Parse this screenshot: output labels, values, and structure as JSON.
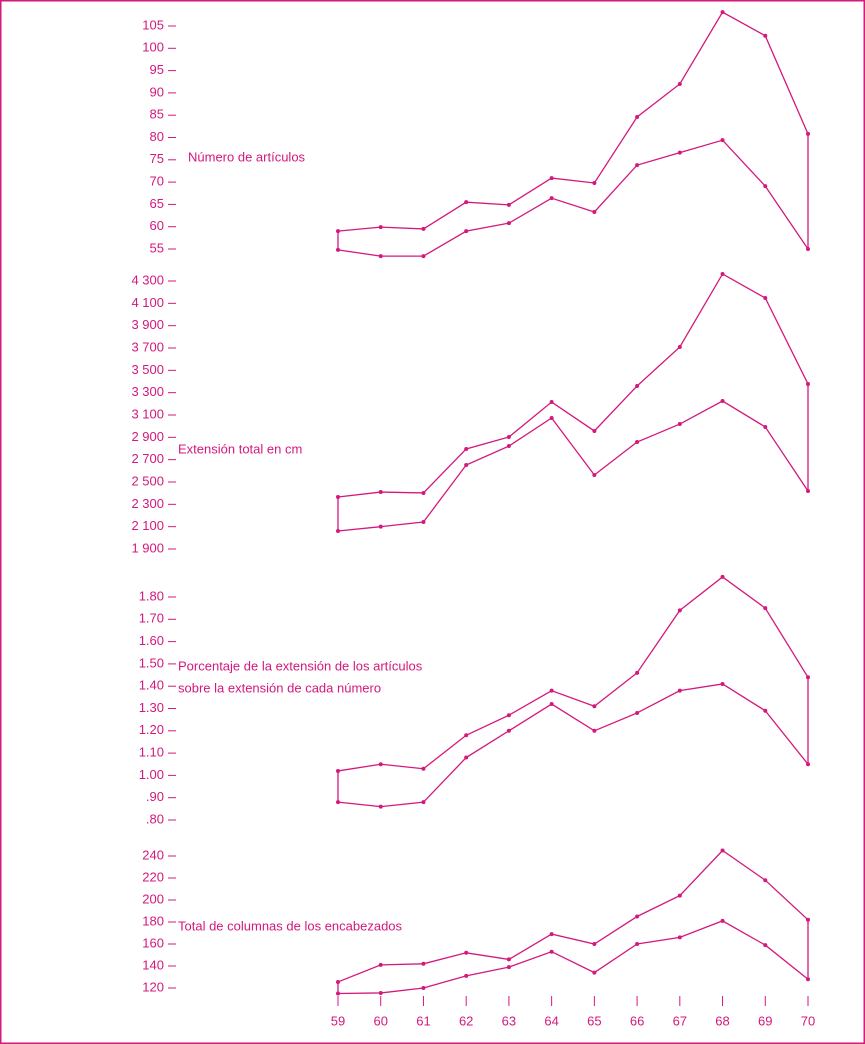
{
  "chart_data": [
    {
      "type": "line",
      "title": [
        "Número de artículos"
      ],
      "x": [
        59,
        60,
        61,
        62,
        63,
        64,
        65,
        66,
        67,
        68,
        69,
        70
      ],
      "xlim": [
        59,
        70
      ],
      "ylim": [
        55,
        105
      ],
      "yticks": [
        55,
        60,
        65,
        70,
        75,
        80,
        85,
        90,
        95,
        100,
        105
      ],
      "series": [
        {
          "color": "#d4187c",
          "values": [
            59.0,
            59.9,
            59.5,
            65.5,
            64.9,
            70.9,
            69.8,
            84.6,
            92.0,
            108.1,
            102.8,
            80.8
          ]
        },
        {
          "color": "#d4187c",
          "values": [
            54.8,
            53.4,
            53.4,
            59.0,
            60.8,
            66.4,
            63.3,
            73.8,
            76.6,
            79.4,
            69.1,
            55.0
          ]
        }
      ]
    },
    {
      "type": "line",
      "title": [
        "Extensión total en cm"
      ],
      "x": [
        59,
        60,
        61,
        62,
        63,
        64,
        65,
        66,
        67,
        68,
        69,
        70
      ],
      "xlim": [
        59,
        70
      ],
      "ylim": [
        1900,
        4300
      ],
      "yticks": [
        {
          "value": 1900,
          "label": "1 900"
        },
        {
          "value": 2100,
          "label": "2 100"
        },
        {
          "value": 2300,
          "label": "2 300"
        },
        {
          "value": 2500,
          "label": "2 500"
        },
        {
          "value": 2700,
          "label": "2 700"
        },
        {
          "value": 2900,
          "label": "2 900"
        },
        {
          "value": 3100,
          "label": "3 100"
        },
        {
          "value": 3300,
          "label": "3 300"
        },
        {
          "value": 3500,
          "label": "3 500"
        },
        {
          "value": 3700,
          "label": "3 700"
        },
        {
          "value": 3900,
          "label": "3 900"
        },
        {
          "value": 4100,
          "label": "4 100"
        },
        {
          "value": 4300,
          "label": "4 300"
        }
      ],
      "series": [
        {
          "color": "#d4187c",
          "values": [
            2366,
            2410,
            2402,
            2796,
            2903,
            3216,
            2957,
            3360,
            3709,
            4363,
            4148,
            3378
          ]
        },
        {
          "color": "#d4187c",
          "values": [
            2061,
            2100,
            2142,
            2652,
            2822,
            3073,
            2563,
            2858,
            3019,
            3225,
            2993,
            2419
          ]
        }
      ]
    },
    {
      "type": "line",
      "title": [
        "Porcentaje de la extensión de los artículos",
        "sobre la extensión de cada número"
      ],
      "x": [
        59,
        60,
        61,
        62,
        63,
        64,
        65,
        66,
        67,
        68,
        69,
        70
      ],
      "xlim": [
        59,
        70
      ],
      "ylim": [
        0.8,
        1.8
      ],
      "yticks": [
        {
          "value": 0.8,
          "label": ".80"
        },
        {
          "value": 0.9,
          "label": ".90"
        },
        {
          "value": 1.0,
          "label": "1.00"
        },
        {
          "value": 1.1,
          "label": "1.10"
        },
        {
          "value": 1.2,
          "label": "1.20"
        },
        {
          "value": 1.3,
          "label": "1.30"
        },
        {
          "value": 1.4,
          "label": "1.40"
        },
        {
          "value": 1.5,
          "label": "1.50"
        },
        {
          "value": 1.6,
          "label": "1.60"
        },
        {
          "value": 1.7,
          "label": "1.70"
        },
        {
          "value": 1.8,
          "label": "1.80"
        }
      ],
      "series": [
        {
          "color": "#d4187c",
          "values": [
            1.02,
            1.05,
            1.03,
            1.18,
            1.27,
            1.38,
            1.31,
            1.46,
            1.74,
            1.89,
            1.75,
            1.44
          ]
        },
        {
          "color": "#d4187c",
          "values": [
            0.88,
            0.86,
            0.88,
            1.08,
            1.2,
            1.32,
            1.2,
            1.28,
            1.38,
            1.41,
            1.29,
            1.05
          ]
        }
      ]
    },
    {
      "type": "line",
      "title": [
        "Total de columnas de los encabezados"
      ],
      "x": [
        59,
        60,
        61,
        62,
        63,
        64,
        65,
        66,
        67,
        68,
        69,
        70
      ],
      "xlim": [
        59,
        70
      ],
      "xticks": [
        59,
        60,
        61,
        62,
        63,
        64,
        65,
        66,
        67,
        68,
        69,
        70
      ],
      "ylim": [
        120,
        240
      ],
      "yticks": [
        120,
        140,
        160,
        180,
        200,
        220,
        240
      ],
      "series": [
        {
          "color": "#d4187c",
          "values": [
            125.5,
            141,
            142,
            152,
            146,
            169,
            160,
            185,
            204,
            245,
            218,
            182
          ]
        },
        {
          "color": "#d4187c",
          "values": [
            115,
            115.5,
            120,
            131,
            139,
            153,
            134,
            160,
            166,
            181,
            159,
            128
          ]
        }
      ]
    }
  ]
}
